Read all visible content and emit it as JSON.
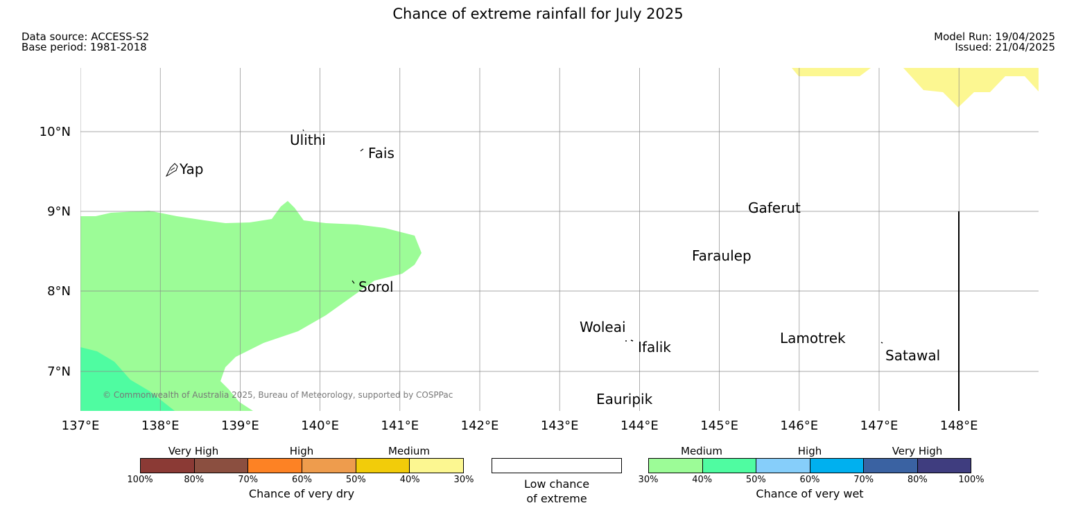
{
  "title": "Chance of extreme rainfall for July 2025",
  "meta": {
    "data_source": "Data source: ACCESS-S2",
    "base_period": "Base period: 1981-2018",
    "model_run": "Model Run: 19/04/2025",
    "issued": "Issued: 21/04/2025"
  },
  "map": {
    "lon_labels": [
      "137°E",
      "138°E",
      "139°E",
      "140°E",
      "141°E",
      "142°E",
      "143°E",
      "144°E",
      "145°E",
      "146°E",
      "147°E",
      "148°E"
    ],
    "lat_labels": [
      "10°N",
      "9°N",
      "8°N",
      "7°N"
    ],
    "places": [
      "Ulithi",
      "Fais",
      "Yap",
      "Gaferut",
      "Faraulep",
      "Sorol",
      "Woleai",
      "Ifalik",
      "Lamotrek",
      "Satawal",
      "Eauripik"
    ],
    "copyright": "© Commonwealth of Australia 2025, Bureau of Meteorology, supported by COSPPac",
    "fill_colors": {
      "medium_wet_30_40": "#9cfc97",
      "medium_wet_40_50": "#4ffca1",
      "medium_dry_30_40": "#fcf791"
    }
  },
  "legend": {
    "dry": {
      "title": "Chance of very dry",
      "categories": [
        "Very High",
        "High",
        "Medium"
      ],
      "ticks": [
        "100%",
        "80%",
        "70%",
        "60%",
        "50%",
        "40%",
        "30%"
      ],
      "colors": [
        "#8b3a35",
        "#8b4f40",
        "#fd8224",
        "#ee9c4d",
        "#f2cc0a",
        "#fcf791"
      ]
    },
    "low": {
      "line1": "Low chance",
      "line2": "of extreme",
      "color": "#ffffff"
    },
    "wet": {
      "title": "Chance of very wet",
      "categories": [
        "Medium",
        "High",
        "Very High"
      ],
      "ticks": [
        "30%",
        "40%",
        "50%",
        "60%",
        "70%",
        "80%",
        "100%"
      ],
      "colors": [
        "#9cfc97",
        "#4ffca1",
        "#86cefa",
        "#00b0ef",
        "#3a62a2",
        "#3f3d7f"
      ]
    }
  }
}
